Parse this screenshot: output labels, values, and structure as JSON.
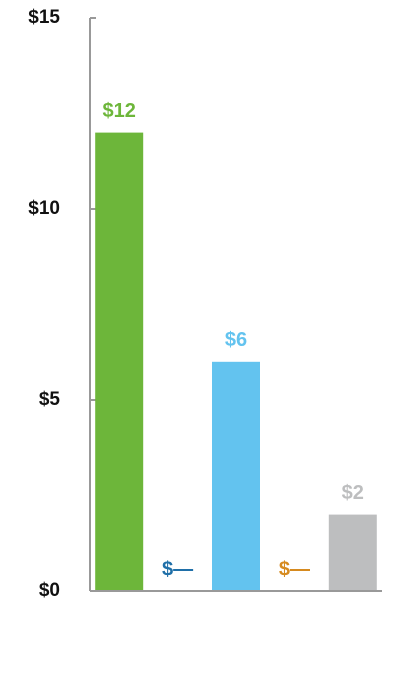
{
  "chart_data": {
    "type": "bar",
    "categories": [
      null,
      null,
      null,
      null,
      null
    ],
    "values": [
      12,
      null,
      6,
      null,
      2
    ],
    "value_labels": [
      "$12",
      "$—",
      "$6",
      "$—",
      "$2"
    ],
    "colors": [
      "#6db63a",
      "#1f6fa8",
      "#63c3ef",
      "#d68a1f",
      "#bdbebf"
    ],
    "ylim": [
      0,
      15
    ],
    "yticks": [
      {
        "value": 0,
        "label": "$0"
      },
      {
        "value": 5,
        "label": "$5"
      },
      {
        "value": 10,
        "label": "$10"
      },
      {
        "value": 15,
        "label": "$15"
      }
    ],
    "grid": false
  }
}
